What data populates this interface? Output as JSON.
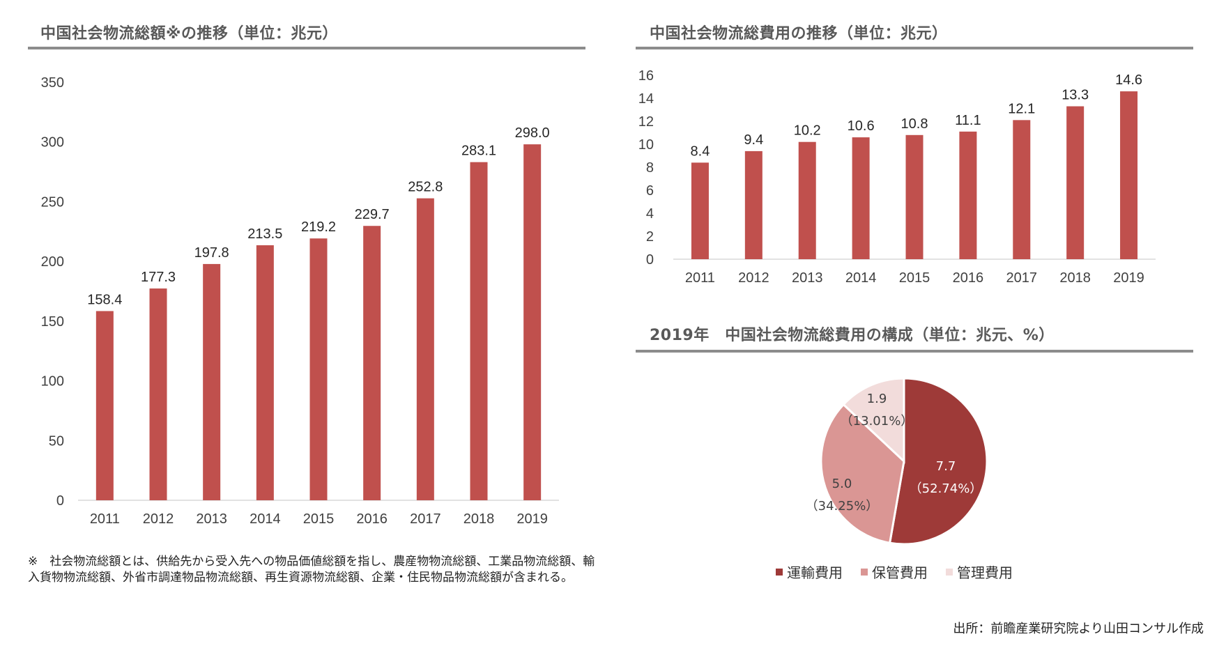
{
  "left_panel": {
    "title": "中国社会物流総額※の推移（単位：兆元）"
  },
  "right_top_panel": {
    "title": "中国社会物流総費用の推移（単位：兆元）"
  },
  "right_bottom_panel": {
    "title": "2019年　中国社会物流総費用の構成（単位：兆元、%）"
  },
  "footnote": "※　社会物流総額とは、供給先から受入先への物品価値総額を指し、農産物物流総額、工業品物流総額、輸入貨物物流総額、外省市調達物品物流総額、再生資源物流総額、企業・住民物品物流総額が含まれる。",
  "source": "出所：前瞻産業研究院より山田コンサル作成",
  "colors": {
    "bar": "#c0504d",
    "pie_transport": "#9e3a38",
    "pie_storage": "#da9694",
    "pie_management": "#f2dcdb",
    "rule": "#8c8c8c",
    "axis": "#d9d9d9"
  },
  "chart_data": [
    {
      "type": "bar",
      "title": "中国社会物流総額※の推移（単位：兆元）",
      "categories": [
        "2011",
        "2012",
        "2013",
        "2014",
        "2015",
        "2016",
        "2017",
        "2018",
        "2019"
      ],
      "values": [
        158.4,
        177.3,
        197.8,
        213.5,
        219.2,
        229.7,
        252.8,
        283.1,
        298.0
      ],
      "value_labels": [
        "158.4",
        "177.3",
        "197.8",
        "213.5",
        "219.2",
        "229.7",
        "252.8",
        "283.1",
        "298.0"
      ],
      "ylim": [
        0,
        350
      ],
      "yticks": [
        0,
        50,
        100,
        150,
        200,
        250,
        300,
        350
      ],
      "grid": false
    },
    {
      "type": "bar",
      "title": "中国社会物流総費用の推移（単位：兆元）",
      "categories": [
        "2011",
        "2012",
        "2013",
        "2014",
        "2015",
        "2016",
        "2017",
        "2018",
        "2019"
      ],
      "values": [
        8.4,
        9.4,
        10.2,
        10.6,
        10.8,
        11.1,
        12.1,
        13.3,
        14.6
      ],
      "value_labels": [
        "8.4",
        "9.4",
        "10.2",
        "10.6",
        "10.8",
        "11.1",
        "12.1",
        "13.3",
        "14.6"
      ],
      "ylim": [
        0,
        16
      ],
      "yticks": [
        0,
        2,
        4,
        6,
        8,
        10,
        12,
        14,
        16
      ],
      "grid": false
    },
    {
      "type": "pie",
      "title": "2019年　中国社会物流総費用の構成（単位：兆元、%）",
      "slices": [
        {
          "name": "運輸費用",
          "value": 7.7,
          "percent": 52.74,
          "value_label": "7.7",
          "percent_label": "（52.74%）"
        },
        {
          "name": "保管費用",
          "value": 5.0,
          "percent": 34.25,
          "value_label": "5.0",
          "percent_label": "（34.25%）"
        },
        {
          "name": "管理費用",
          "value": 1.9,
          "percent": 13.01,
          "value_label": "1.9",
          "percent_label": "（13.01%）"
        }
      ],
      "legend_position": "bottom"
    }
  ]
}
